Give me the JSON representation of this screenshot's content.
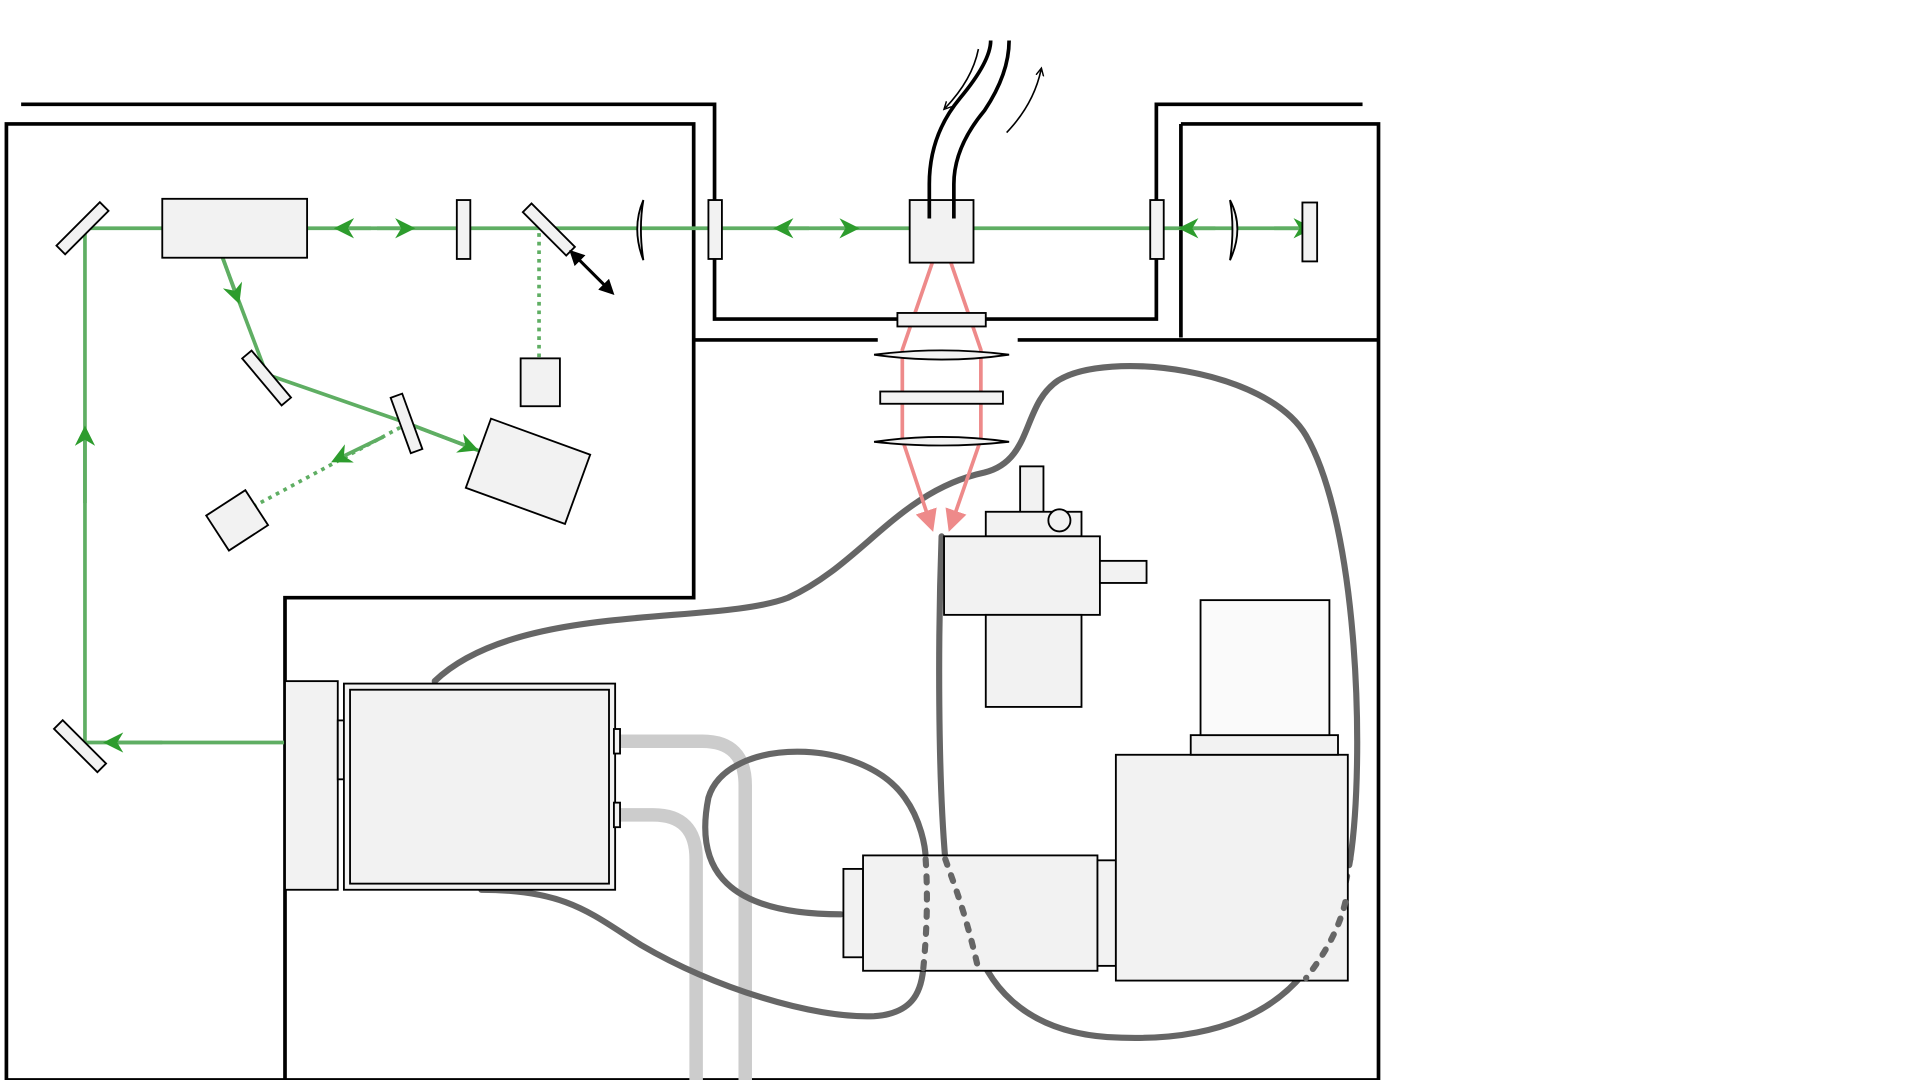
{
  "diagram": {
    "colors": {
      "background": "#ffffff",
      "wall": "#000000",
      "component_fill": "#f2f2f2",
      "component_stroke": "#000000",
      "laser_beam": "#5fae63",
      "laser_arrow": "#2d9c2d",
      "fluorescence_beam": "#ee8a8a",
      "cable": "#666666",
      "coolant_hose": "#cccccc"
    },
    "labels": []
  }
}
